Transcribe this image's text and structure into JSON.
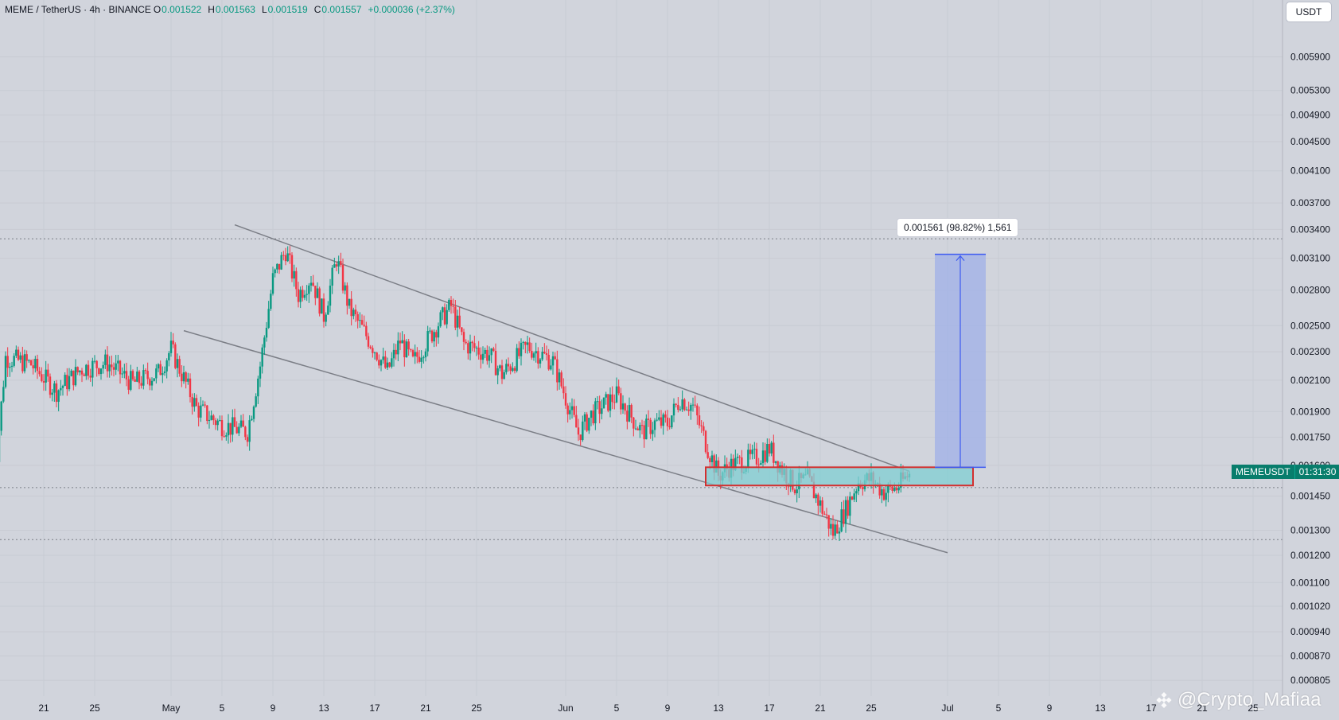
{
  "header": {
    "symbol_line": "MEME / TetherUS · 4h · BINANCE",
    "open_label": "O",
    "open": "0.001522",
    "high_label": "H",
    "high": "0.001563",
    "low_label": "L",
    "low": "0.001519",
    "close_label": "C",
    "close": "0.001557",
    "change": "+0.000036 (+2.37%)"
  },
  "currency_button": "USDT",
  "price_tag": {
    "symbol": "MEMEUSDT",
    "countdown": "01:31:30"
  },
  "measure": {
    "label": "0.001561 (98.82%) 1,561"
  },
  "watermark": {
    "text": "@Crypto_Mafiaa"
  },
  "colors": {
    "background": "#d1d4dc",
    "up": "#089981",
    "down": "#f23645",
    "channel": "#7b7e86",
    "zone_fill": "#7fcfd3",
    "zone_border": "#d32f2f",
    "projection_fill": "#9fb0e8",
    "projection_line": "#3d5af1"
  },
  "chart_data": {
    "type": "candlestick",
    "title": "MEME / TetherUS · 4h · BINANCE",
    "yaxis": {
      "scale": "log",
      "ticks": [
        "0.005900",
        "0.005300",
        "0.004900",
        "0.004500",
        "0.004100",
        "0.003700",
        "0.003400",
        "0.003100",
        "0.002800",
        "0.002500",
        "0.002300",
        "0.002100",
        "0.001900",
        "0.001750",
        "0.001600",
        "0.001450",
        "0.001300",
        "0.001200",
        "0.001100",
        "0.001020",
        "0.000940",
        "0.000870",
        "0.000805"
      ],
      "ylim": [
        0.000795,
        0.0062
      ]
    },
    "xaxis": {
      "ticks": [
        "21",
        "25",
        "May",
        "5",
        "9",
        "13",
        "17",
        "21",
        "25",
        "Jun",
        "5",
        "9",
        "13",
        "17",
        "21",
        "25",
        "Jul",
        "5",
        "9",
        "13",
        "17",
        "21",
        "25"
      ]
    },
    "price_path": [
      [
        "Apr 17",
        0.00143
      ],
      [
        "Apr 18",
        0.00226
      ],
      [
        "Apr 20",
        0.00221
      ],
      [
        "Apr 22",
        0.00203
      ],
      [
        "Apr 24",
        0.00218
      ],
      [
        "Apr 26",
        0.00222
      ],
      [
        "Apr 28",
        0.00208
      ],
      [
        "Apr 30",
        0.00215
      ],
      [
        "May 1",
        0.00232
      ],
      [
        "May 3",
        0.00192
      ],
      [
        "May 5",
        0.00182
      ],
      [
        "May 7",
        0.00178
      ],
      [
        "May 8",
        0.0022
      ],
      [
        "May 9",
        0.0029
      ],
      [
        "May 10",
        0.00318
      ],
      [
        "May 11",
        0.00276
      ],
      [
        "May 12",
        0.00292
      ],
      [
        "May 13",
        0.00258
      ],
      [
        "May 14",
        0.0031
      ],
      [
        "May 15",
        0.00264
      ],
      [
        "May 17",
        0.00232
      ],
      [
        "May 18",
        0.00216
      ],
      [
        "May 19",
        0.00238
      ],
      [
        "May 20",
        0.00222
      ],
      [
        "May 22",
        0.00252
      ],
      [
        "May 23",
        0.00266
      ],
      [
        "May 24",
        0.00236
      ],
      [
        "May 26",
        0.00228
      ],
      [
        "May 27",
        0.00214
      ],
      [
        "May 29",
        0.00234
      ],
      [
        "May 31",
        0.00223
      ],
      [
        "Jun 2",
        0.00177
      ],
      [
        "Jun 3",
        0.00188
      ],
      [
        "Jun 5",
        0.002
      ],
      [
        "Jun 7",
        0.00178
      ],
      [
        "Jun 8",
        0.00183
      ],
      [
        "Jun 9",
        0.00183
      ],
      [
        "Jun 10",
        0.00198
      ],
      [
        "Jun 11",
        0.00193
      ],
      [
        "Jun 12",
        0.00172
      ],
      [
        "Jun 13",
        0.00155
      ],
      [
        "Jun 14",
        0.0016
      ],
      [
        "Jun 16",
        0.00164
      ],
      [
        "Jun 17",
        0.00169
      ],
      [
        "Jun 18",
        0.00158
      ],
      [
        "Jun 19",
        0.0015
      ],
      [
        "Jun 20",
        0.00153
      ],
      [
        "Jun 21",
        0.00141
      ],
      [
        "Jun 22",
        0.00129
      ],
      [
        "Jun 23",
        0.00139
      ],
      [
        "Jun 24",
        0.00152
      ],
      [
        "Jun 25",
        0.00153
      ],
      [
        "Jun 26",
        0.00147
      ],
      [
        "Jun 27",
        0.00149
      ],
      [
        "Jun 28",
        0.001557
      ]
    ],
    "current_price": 0.001557,
    "horizontal_lines": [
      0.0033,
      0.00149,
      0.001262
    ],
    "descending_channel": {
      "upper": {
        "from": [
          "May 6",
          0.00345
        ],
        "to": [
          "Jun 28",
          0.00157
        ]
      },
      "lower": {
        "from": [
          "May 2",
          0.00246
        ],
        "to": [
          "Jul 1",
          0.00121
        ]
      }
    },
    "breakout_zone": {
      "from": "Jun 12",
      "to": "Jul 3",
      "price_low": 0.0015,
      "price_high": 0.00159
    },
    "target_projection": {
      "from": "Jun 30",
      "to": "Jul 4",
      "price_low": 0.00159,
      "price_high": 0.00314,
      "change": "0.001561 (98.82%) 1,561"
    }
  }
}
